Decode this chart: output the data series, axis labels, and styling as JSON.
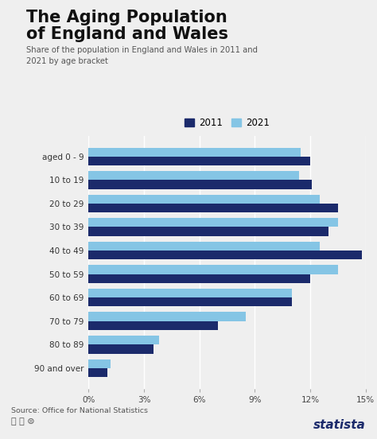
{
  "title_line1": "The Aging Population",
  "title_line2": "of England and Wales",
  "subtitle": "Share of the population in England and Wales in 2011 and\n2021 by age bracket",
  "source": "Source: Office for National Statistics",
  "categories": [
    "aged 0 - 9",
    "10 to 19",
    "20 to 29",
    "30 to 39",
    "40 to 49",
    "50 to 59",
    "60 to 69",
    "70 to 79",
    "80 to 89",
    "90 and over"
  ],
  "values_2011": [
    12.0,
    12.1,
    13.5,
    13.0,
    14.8,
    12.0,
    11.0,
    7.0,
    3.5,
    1.0
  ],
  "values_2021": [
    11.5,
    11.4,
    12.5,
    13.5,
    12.5,
    13.5,
    11.0,
    8.5,
    3.8,
    1.2
  ],
  "color_2011": "#1b2a6b",
  "color_2021": "#85c5e5",
  "bg_color": "#efefef",
  "title_bar_color": "#1b2a6b",
  "xlim": [
    0,
    15
  ],
  "xticks": [
    0,
    3,
    6,
    9,
    12,
    15
  ],
  "xtick_labels": [
    "0%",
    "3%",
    "6%",
    "9%",
    "12%",
    "15%"
  ]
}
